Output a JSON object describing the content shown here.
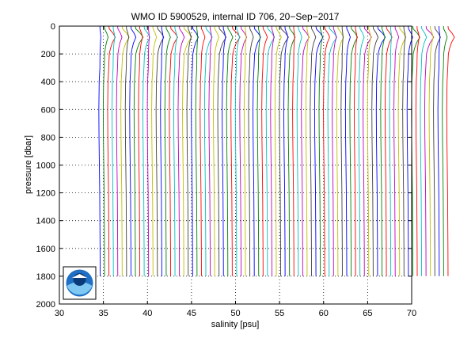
{
  "chart_data": {
    "type": "line",
    "title": "WMO ID 5900529, internal ID 706, 20−Sep−2017",
    "xlabel": "salinity [psu]",
    "ylabel": "pressure [dbar]",
    "xlim": [
      30,
      70
    ],
    "ylim": [
      0,
      2000
    ],
    "y_reversed": true,
    "grid": "dotted",
    "xticks": [
      30,
      35,
      40,
      45,
      50,
      55,
      60,
      65,
      70
    ],
    "yticks": [
      0,
      200,
      400,
      600,
      800,
      1000,
      1200,
      1400,
      1600,
      1800,
      2000
    ],
    "description_profiles": {
      "first_profile_salinity": 34.6,
      "profile_offset_psu": 0.5,
      "profile_count": 80,
      "max_pressure": 1800,
      "colors": [
        "#0000ff",
        "#008000",
        "#ff0000",
        "#00bfbf",
        "#bf00bf",
        "#bfbf00",
        "#404040"
      ]
    },
    "profile_shape": {
      "pressure": [
        0,
        20,
        50,
        80,
        120,
        160,
        200,
        300,
        400,
        600,
        800,
        1000,
        1200,
        1400,
        1600,
        1800
      ],
      "salinity_anomaly": [
        0.02,
        0.05,
        0.35,
        0.55,
        0.3,
        0.15,
        0.05,
        0.0,
        -0.08,
        -0.12,
        -0.1,
        -0.06,
        -0.02,
        0.0,
        0.02,
        0.03
      ]
    }
  },
  "logo": {
    "name": "noaa-logo",
    "text": "NOAA"
  }
}
